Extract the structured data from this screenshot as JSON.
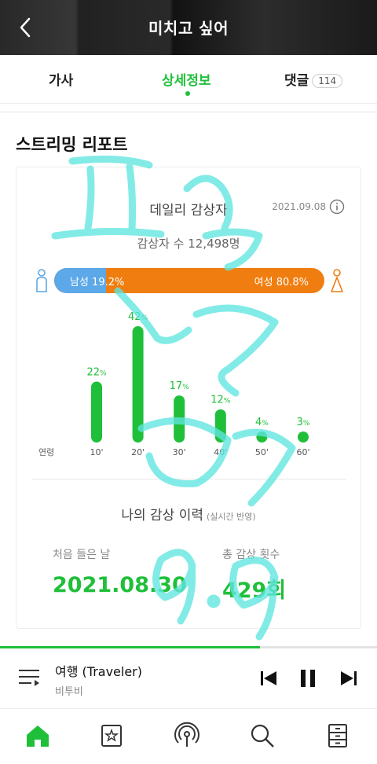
{
  "header": {
    "title": "미치고 싶어",
    "back_icon": "chevron-left-icon"
  },
  "tabs": [
    {
      "label": "가사"
    },
    {
      "label": "상세정보",
      "active": true
    },
    {
      "label": "댓글",
      "count": "114"
    }
  ],
  "section_title": "스트리밍 리포트",
  "daily": {
    "title": "데일리 감상자",
    "date": "2021.09.08",
    "listeners": "감상자 수 12,498명",
    "male_label": "남성 19.2%",
    "female_label": "여성 80.8%",
    "male_ratio": 0.192,
    "colors": {
      "male": "#5ca8e8",
      "female": "#f07d0f",
      "accent": "#1fbf3a"
    }
  },
  "chart_data": {
    "type": "bar",
    "xlabel": "연령",
    "categories": [
      "10'",
      "20'",
      "30'",
      "40'",
      "50'",
      "60'"
    ],
    "values": [
      22,
      42,
      17,
      12,
      4,
      3
    ],
    "value_suffix": "%",
    "ylim": [
      0,
      42
    ]
  },
  "history": {
    "title": "나의 감상 이력",
    "subtitle": "(실시간 반영)",
    "first_label": "처음 들은 날",
    "first_value": "2021.08.30",
    "total_label": "총 감상 횟수",
    "total_value": "429회"
  },
  "player": {
    "title": "여행 (Traveler)",
    "artist": "비투비",
    "progress": 0.69
  },
  "bottom_nav": [
    "home-icon",
    "music-library-icon",
    "podcast-icon",
    "search-icon",
    "drawer-icon"
  ]
}
